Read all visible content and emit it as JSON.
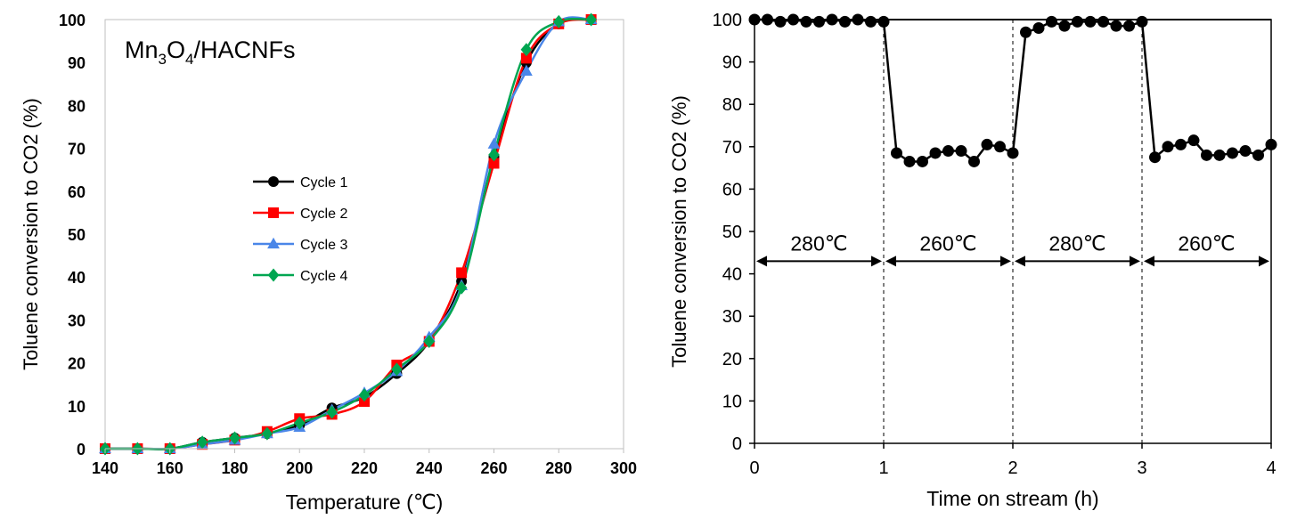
{
  "chart_data": [
    {
      "type": "line",
      "title": "",
      "annotation": "Mn3O4/HACNFs",
      "annotation_parts": [
        "Mn",
        "3",
        "O",
        "4",
        "/HACNFs"
      ],
      "xlabel": "Temperature (℃)",
      "ylabel": "Toluene conversion to CO2 (%)",
      "xlim": [
        140,
        300
      ],
      "ylim": [
        0,
        100
      ],
      "xticks": [
        140,
        160,
        180,
        200,
        220,
        240,
        260,
        280,
        300
      ],
      "yticks": [
        0,
        10,
        20,
        30,
        40,
        50,
        60,
        70,
        80,
        90,
        100
      ],
      "grid": false,
      "legend": "center-left",
      "series": [
        {
          "name": "Cycle 1",
          "color": "#000000",
          "marker": "circle",
          "x": [
            140,
            150,
            160,
            170,
            180,
            190,
            200,
            210,
            220,
            230,
            240,
            250,
            260,
            270,
            280,
            290
          ],
          "y": [
            0,
            0,
            0,
            1.5,
            2.5,
            3.5,
            5.5,
            9.5,
            12,
            17.5,
            25,
            39,
            68,
            90,
            99,
            100
          ]
        },
        {
          "name": "Cycle 2",
          "color": "#ff0000",
          "marker": "square",
          "x": [
            140,
            150,
            160,
            170,
            180,
            190,
            200,
            210,
            220,
            230,
            240,
            250,
            260,
            270,
            280,
            290
          ],
          "y": [
            0,
            0,
            0,
            1,
            2,
            4,
            7,
            8,
            11,
            19.5,
            25,
            41,
            66.5,
            91,
            99,
            100
          ]
        },
        {
          "name": "Cycle 3",
          "color": "#4a86e8",
          "marker": "triangle",
          "x": [
            140,
            150,
            160,
            170,
            180,
            190,
            200,
            210,
            220,
            230,
            240,
            250,
            260,
            270,
            280,
            290
          ],
          "y": [
            0,
            0,
            0,
            1,
            2,
            3.5,
            5,
            9,
            13,
            18,
            26,
            38,
            71,
            88,
            99.5,
            100
          ]
        },
        {
          "name": "Cycle 4",
          "color": "#00a651",
          "marker": "diamond",
          "x": [
            140,
            150,
            160,
            170,
            180,
            190,
            200,
            210,
            220,
            230,
            240,
            250,
            260,
            270,
            280,
            290
          ],
          "y": [
            0,
            0,
            0,
            1.5,
            2.5,
            3.5,
            6,
            8.5,
            12.5,
            18.5,
            25,
            37.5,
            68.5,
            93,
            99.5,
            100
          ]
        }
      ]
    },
    {
      "type": "line",
      "title": "",
      "xlabel": "Time on stream (h)",
      "ylabel": "Toluene conversion to CO2 (%)",
      "xlim": [
        0,
        4
      ],
      "ylim": [
        0,
        100
      ],
      "xticks": [
        0,
        1,
        2,
        3,
        4
      ],
      "yticks": [
        0,
        10,
        20,
        30,
        40,
        50,
        60,
        70,
        80,
        90,
        100
      ],
      "grid": false,
      "legend": "none",
      "series": [
        {
          "color": "#000000",
          "marker": "circle",
          "x": [
            0,
            0.1,
            0.2,
            0.3,
            0.4,
            0.5,
            0.6,
            0.7,
            0.8,
            0.9,
            1.0,
            1.1,
            1.2,
            1.3,
            1.4,
            1.5,
            1.6,
            1.7,
            1.8,
            1.9,
            2.0,
            2.1,
            2.2,
            2.3,
            2.4,
            2.5,
            2.6,
            2.7,
            2.8,
            2.9,
            3.0,
            3.1,
            3.2,
            3.3,
            3.4,
            3.5,
            3.6,
            3.7,
            3.8,
            3.9,
            4.0
          ],
          "y": [
            100,
            100,
            99.5,
            100,
            99.5,
            99.5,
            100,
            99.5,
            100,
            99.5,
            99.5,
            68.5,
            66.5,
            66.5,
            68.5,
            69,
            69,
            66.5,
            70.5,
            70,
            68.5,
            97,
            98,
            99.5,
            98.5,
            99.5,
            99.5,
            99.5,
            98.5,
            98.5,
            99.5,
            67.5,
            70,
            70.5,
            71.5,
            68,
            68,
            68.5,
            69,
            68,
            70.5
          ]
        }
      ],
      "reference_line": {
        "y": 100
      },
      "dividers_x": [
        1,
        2,
        3
      ],
      "temperature_bands": [
        {
          "label": "280℃",
          "x0": 0,
          "x1": 1,
          "y": 43
        },
        {
          "label": "260℃",
          "x0": 1,
          "x1": 2,
          "y": 43
        },
        {
          "label": "280℃",
          "x0": 2,
          "x1": 3,
          "y": 43
        },
        {
          "label": "260℃",
          "x0": 3,
          "x1": 4,
          "y": 43
        }
      ]
    }
  ]
}
